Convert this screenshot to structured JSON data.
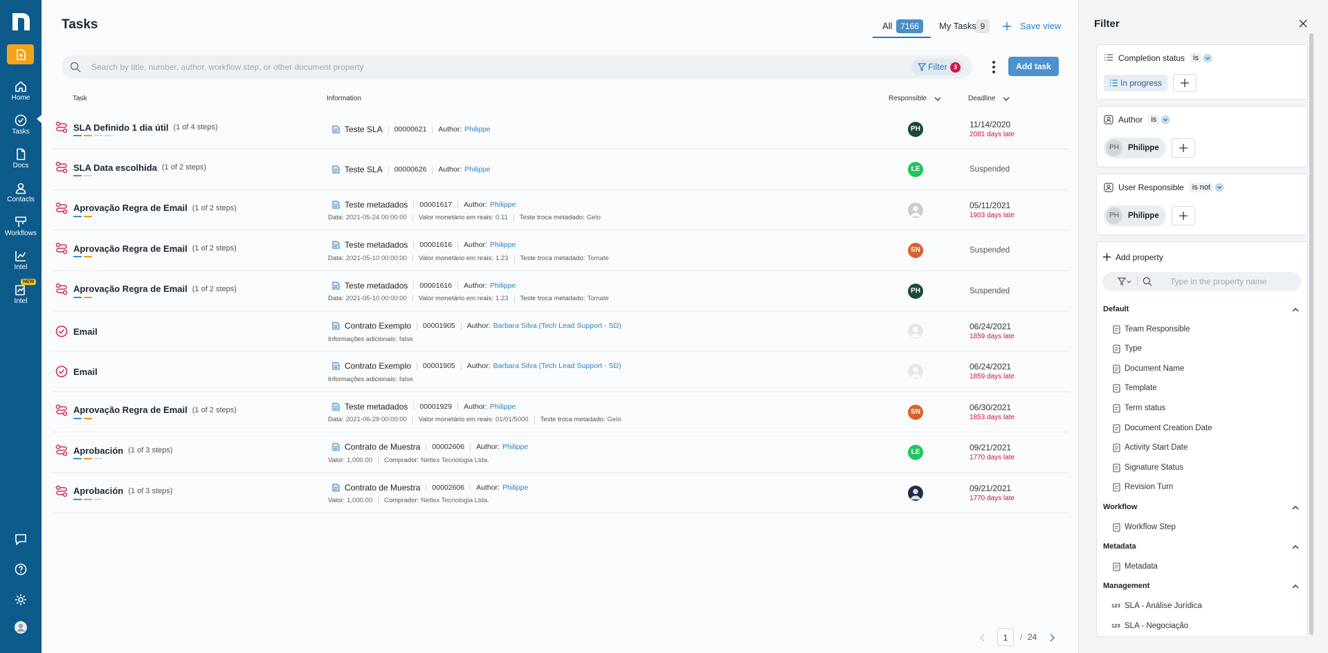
{
  "sidebar": {
    "nav": [
      {
        "label": "Home"
      },
      {
        "label": "Tasks"
      },
      {
        "label": "Docs"
      },
      {
        "label": "Contacts"
      },
      {
        "label": "Workflows"
      },
      {
        "label": "Intel"
      },
      {
        "label": "Intel",
        "badge": "NEW"
      }
    ]
  },
  "header": {
    "title": "Tasks",
    "tabs": [
      {
        "label": "All",
        "count": "7166"
      },
      {
        "label": "My Tasks",
        "count": "9"
      }
    ],
    "save_view": "Save view"
  },
  "toolbar": {
    "search_placeholder": "Search by title, number, author, workflow step, or other document property",
    "filter": "Filter",
    "filter_count": "3",
    "add_task": "Add task"
  },
  "table": {
    "columns": [
      "Task",
      "Information",
      "Responsible",
      "Deadline"
    ],
    "rows": [
      {
        "title": "SLA Definido 1 dia útil",
        "steps": "(1 of 4 steps)",
        "progress": [
          "#3f8fd2",
          "#f39a1e",
          "#d5d9dd",
          "#d5d9dd"
        ],
        "document": "Teste SLA",
        "number": "00000621",
        "author_label": "Author:",
        "author": "Philippe",
        "avatar": {
          "initials": "PH",
          "color": "#1c4a34"
        },
        "deadline": "11/14/2020",
        "late": "2081 days late"
      },
      {
        "title": "SLA Data escolhida",
        "steps": "(1 of 2 steps)",
        "progress": [
          "#3f8fd2",
          "#d5d9dd"
        ],
        "document": "Teste SLA",
        "number": "00000626",
        "author_label": "Author:",
        "author": "Philippe",
        "avatar": {
          "initials": "LE",
          "color": "#22c55e"
        },
        "deadline": "Suspended"
      },
      {
        "title": "Aprovação Regra de Email",
        "steps": "(1 of 2 steps)",
        "progress": [
          "#3f8fd2",
          "#f39a1e"
        ],
        "document": "Teste metadados",
        "number": "00001617",
        "author_label": "Author:",
        "author": "Philippe",
        "details": [
          {
            "label": "Data:",
            "value": "2021-05-24 00:00:00"
          },
          {
            "label": "Valor monetário em reais:",
            "value": "0.11"
          },
          {
            "label": "Teste troca metadado:",
            "value": "Gelo"
          }
        ],
        "avatar": {
          "color": "#c6ccd2"
        },
        "deadline": "05/11/2021",
        "late": "1903 days late"
      },
      {
        "title": "Aprovação Regra de Email",
        "steps": "(1 of 2 steps)",
        "progress": [
          "#3f8fd2",
          "#f39a1e"
        ],
        "document": "Teste metadados",
        "number": "00001616",
        "author_label": "Author:",
        "author": "Philippe",
        "details": [
          {
            "label": "Data:",
            "value": "2021-05-10 00:00:00"
          },
          {
            "label": "Valor monetário em reais:",
            "value": "1.23"
          },
          {
            "label": "Teste troca metadado:",
            "value": "Tomate"
          }
        ],
        "avatar": {
          "initials": "SN",
          "color": "#d9622b"
        },
        "deadline": "Suspended"
      },
      {
        "title": "Aprovação Regra de Email",
        "steps": "(1 of 2 steps)",
        "progress": [
          "#3f8fd2",
          "#f39a1e"
        ],
        "document": "Teste metadados",
        "number": "00001616",
        "author_label": "Author:",
        "author": "Philippe",
        "details": [
          {
            "label": "Data:",
            "value": "2021-05-10 00:00:00"
          },
          {
            "label": "Valor monetário em reais:",
            "value": "1.23"
          },
          {
            "label": "Teste troca metadado:",
            "value": "Tomate"
          }
        ],
        "avatar": {
          "initials": "PH",
          "color": "#1c4a34"
        },
        "deadline": "Suspended"
      },
      {
        "title": "Email",
        "document": "Contrato Exemplo",
        "number": "00001905",
        "author_label": "Author:",
        "author": "Barbara Silva (Tech Lead Support - SD)",
        "details": [
          {
            "label": "Informações adicionais:",
            "value": "false"
          }
        ],
        "avatar": {
          "color": "#e3e6ea"
        },
        "deadline": "06/24/2021",
        "late": "1859 days late"
      },
      {
        "title": "Email",
        "document": "Contrato Exemplo",
        "number": "00001905",
        "author_label": "Author:",
        "author": "Barbara Silva (Tech Lead Support - SD)",
        "details": [
          {
            "label": "Informações adicionais:",
            "value": "false"
          }
        ],
        "avatar": {
          "color": "#e3e6ea"
        },
        "deadline": "06/24/2021",
        "late": "1859 days late"
      },
      {
        "title": "Aprovação Regra de Email",
        "steps": "(1 of 2 steps)",
        "progress": [
          "#3f8fd2",
          "#f39a1e"
        ],
        "document": "Teste metadados",
        "number": "00001929",
        "author_label": "Author:",
        "author": "Philippe",
        "details": [
          {
            "label": "Data:",
            "value": "2021-06-29 00:00:00"
          },
          {
            "label": "Valor monetário em reais:",
            "value": "01/01/5000"
          },
          {
            "label": "Teste troca metadado:",
            "value": "Gelo"
          }
        ],
        "avatar": {
          "initials": "SN",
          "color": "#d9622b"
        },
        "deadline": "06/30/2021",
        "late": "1853 days late"
      },
      {
        "title": "Aprobación",
        "steps": "(1 of 3 steps)",
        "progress": [
          "#3f8fd2",
          "#f39a1e",
          "#d5d9dd"
        ],
        "document": "Contrato de Muestra",
        "number": "00002606",
        "author_label": "Author:",
        "author": "Philippe",
        "details": [
          {
            "label": "Valor:",
            "value": "1,000.00"
          },
          {
            "label": "Comprador:",
            "value": "Netlex Tecnologia Ltda."
          }
        ],
        "avatar": {
          "initials": "LE",
          "color": "#22c55e"
        },
        "deadline": "09/21/2021",
        "late": "1770 days late"
      },
      {
        "title": "Aprobación",
        "steps": "(1 of 3 steps)",
        "progress": [
          "#3f8fd2",
          "#f39a1e",
          "#d5d9dd"
        ],
        "document": "Contrato de Muestra",
        "number": "00002606",
        "author_label": "Author:",
        "author": "Philippe",
        "details": [
          {
            "label": "Valor:",
            "value": "1,000.00"
          },
          {
            "label": "Comprador:",
            "value": "Netlex Tecnologia Ltda."
          }
        ],
        "avatar": {
          "color": "#1f2d4a"
        },
        "deadline": "09/21/2021",
        "late": "1770 days late"
      }
    ]
  },
  "pagination": {
    "page": "1",
    "separator": "/",
    "total": "24"
  },
  "filter_panel": {
    "title": "Filter",
    "conditions": [
      {
        "field": "Completion status",
        "operator": "is",
        "values": [
          {
            "name": "In progress"
          }
        ]
      },
      {
        "field": "Author",
        "operator": "is",
        "values": [
          {
            "initials": "PH",
            "name": "Philippe"
          }
        ]
      },
      {
        "field": "User Responsible",
        "operator": "is not",
        "values": [
          {
            "initials": "PH",
            "name": "Philippe"
          }
        ]
      }
    ],
    "add_property": "Add property",
    "search_placeholder": "Type in the property name",
    "groups": [
      {
        "title": "Default",
        "items": [
          {
            "label": "Team Responsible"
          },
          {
            "label": "Type"
          },
          {
            "label": "Document Name"
          },
          {
            "label": "Template"
          },
          {
            "label": "Term status"
          },
          {
            "label": "Document Creation Date"
          },
          {
            "label": "Activity Start Date"
          },
          {
            "label": "Signature Status"
          },
          {
            "label": "Revision Turn"
          }
        ]
      },
      {
        "title": "Workflow",
        "items": [
          {
            "label": "Workflow Step"
          }
        ]
      },
      {
        "title": "Metadata",
        "items": [
          {
            "label": "Metadata"
          }
        ]
      },
      {
        "title": "Management",
        "items": [
          {
            "icon_text": "123",
            "label": "SLA - Análise Jurídica"
          },
          {
            "icon_text": "123",
            "label": "SLA - Negociação"
          }
        ]
      }
    ]
  }
}
